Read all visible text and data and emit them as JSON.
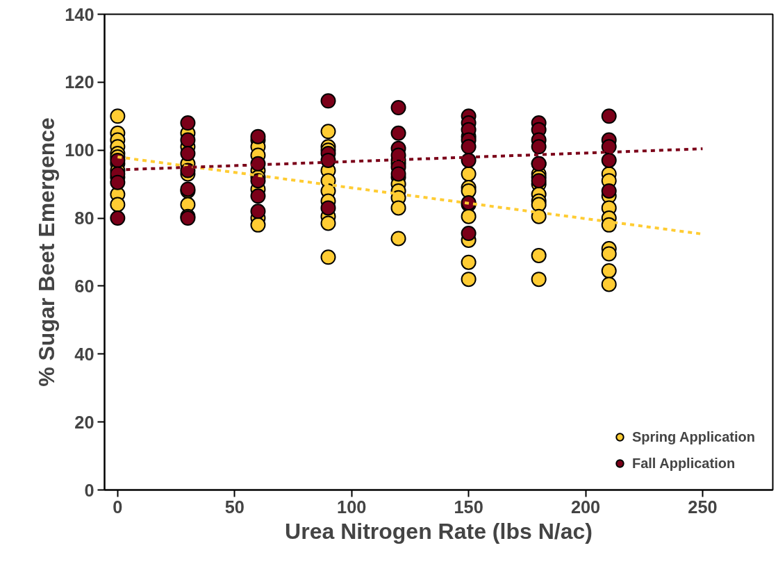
{
  "chart_data": {
    "type": "scatter",
    "xlabel": "Urea Nitrogen Rate (lbs N/ac)",
    "ylabel": "% Sugar Beet Emergence",
    "xlim": [
      -5.6,
      280
    ],
    "ylim": [
      0,
      140
    ],
    "xticks": [
      0,
      50,
      100,
      150,
      200,
      250
    ],
    "yticks": [
      0,
      20,
      40,
      60,
      80,
      100,
      120,
      140
    ],
    "grid": false,
    "legend": "bottom right",
    "series": [
      {
        "name": "Spring Application",
        "color": "#ffcc33",
        "marker": "circle",
        "x": [
          0,
          0,
          0,
          0,
          0,
          0,
          0,
          0,
          0,
          0,
          0,
          30,
          30,
          30,
          30,
          30,
          30,
          30,
          60,
          60,
          60,
          60,
          60,
          60,
          60,
          60,
          90,
          90,
          90,
          90,
          90,
          90,
          90,
          90,
          90,
          90,
          120,
          120,
          120,
          120,
          120,
          120,
          120,
          120,
          150,
          150,
          150,
          150,
          150,
          150,
          150,
          150,
          150,
          180,
          180,
          180,
          180,
          180,
          180,
          180,
          180,
          180,
          180,
          210,
          210,
          210,
          210,
          210,
          210,
          210,
          210,
          210,
          210
        ],
        "values": [
          110,
          105,
          103,
          101,
          99,
          98,
          96,
          94,
          92,
          87,
          84,
          105,
          101,
          96,
          93,
          88,
          84,
          80.5,
          103,
          101,
          98.5,
          94,
          92,
          88.5,
          80,
          78,
          105.5,
          101,
          100,
          94,
          91,
          88,
          85,
          80.5,
          78.5,
          68.5,
          97,
          96,
          92,
          90,
          88,
          86,
          83,
          74,
          104,
          93,
          89,
          88,
          84,
          80.5,
          73.5,
          67,
          62,
          96,
          93,
          92,
          90,
          87,
          85,
          84,
          80.5,
          69,
          62,
          93,
          91,
          86.5,
          83,
          80,
          78,
          71,
          69.5,
          64.5,
          60.5
        ]
      },
      {
        "name": "Fall Application",
        "color": "#7b0019",
        "marker": "circle",
        "x": [
          0,
          0,
          0,
          0,
          30,
          30,
          30,
          30,
          30,
          30,
          60,
          60,
          60,
          60,
          60,
          90,
          90,
          90,
          90,
          120,
          120,
          120,
          120,
          120,
          120,
          150,
          150,
          150,
          150,
          150,
          150,
          150,
          150,
          180,
          180,
          180,
          180,
          180,
          180,
          210,
          210,
          210,
          210,
          210
        ],
        "values": [
          97,
          93,
          90.5,
          80,
          108,
          103,
          99,
          94,
          88.5,
          80,
          104,
          96,
          91,
          86.5,
          82,
          114.5,
          99,
          97,
          83,
          112.5,
          105,
          100.5,
          98.5,
          95,
          93,
          110,
          108,
          106,
          103,
          101,
          97,
          84.5,
          75.5,
          108,
          106,
          103,
          101,
          96,
          91,
          110,
          103,
          101,
          97,
          88
        ]
      },
      {
        "color": "#ffcc33",
        "type": "line",
        "marker": "none",
        "line_style": "dashed",
        "x": [
          0,
          250
        ],
        "values": [
          98,
          75.3
        ]
      },
      {
        "color": "#7b0019",
        "type": "line",
        "marker": "none",
        "line_style": "dashed",
        "x": [
          0,
          250
        ],
        "values": [
          94.2,
          100.4
        ]
      }
    ]
  }
}
